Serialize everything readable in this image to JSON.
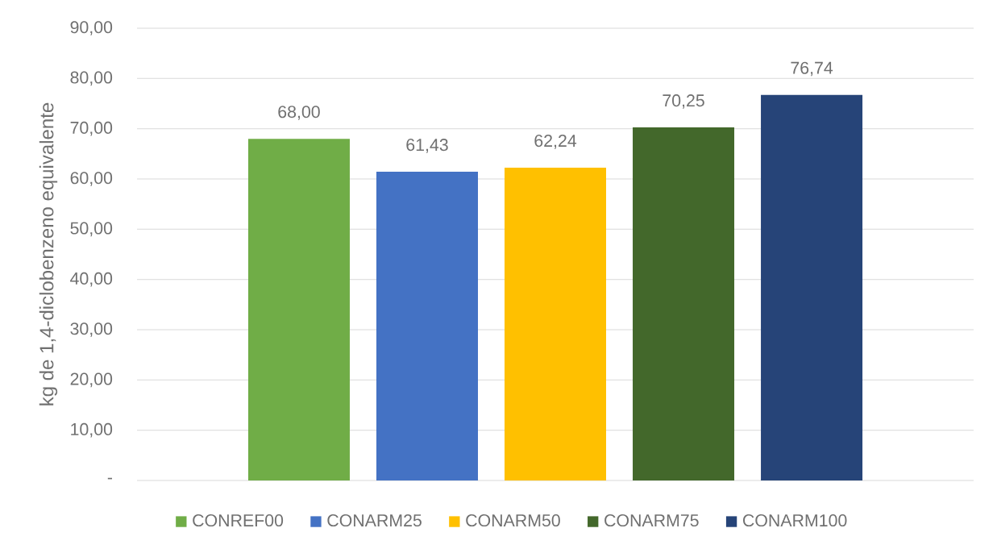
{
  "chart_data": {
    "type": "bar",
    "ylabel": "kg de 1,4-diclobenzeno equivalente",
    "categories": [
      null
    ],
    "series": [
      {
        "name": "CONREF00",
        "color": "#70ad47",
        "values": [
          68.0
        ],
        "value_labels": [
          "68,00"
        ]
      },
      {
        "name": "CONARM25",
        "color": "#4472c4",
        "values": [
          61.43
        ],
        "value_labels": [
          "61,43"
        ]
      },
      {
        "name": "CONARM50",
        "color": "#ffc000",
        "values": [
          62.24
        ],
        "value_labels": [
          "62,24"
        ]
      },
      {
        "name": "CONARM75",
        "color": "#43682b",
        "values": [
          70.25
        ],
        "value_labels": [
          "70,25"
        ]
      },
      {
        "name": "CONARM100",
        "color": "#264478",
        "values": [
          76.74
        ],
        "value_labels": [
          "76,74"
        ]
      }
    ],
    "ylim": [
      0,
      90
    ],
    "yticks": [
      {
        "value": 0,
        "label": "-"
      },
      {
        "value": 10,
        "label": "10,00"
      },
      {
        "value": 20,
        "label": "20,00"
      },
      {
        "value": 30,
        "label": "30,00"
      },
      {
        "value": 40,
        "label": "40,00"
      },
      {
        "value": 50,
        "label": "50,00"
      },
      {
        "value": 60,
        "label": "60,00"
      },
      {
        "value": 70,
        "label": "70,00"
      },
      {
        "value": 80,
        "label": "80,00"
      },
      {
        "value": 90,
        "label": "90,00"
      }
    ],
    "grid": "y",
    "legend": "bottom"
  }
}
